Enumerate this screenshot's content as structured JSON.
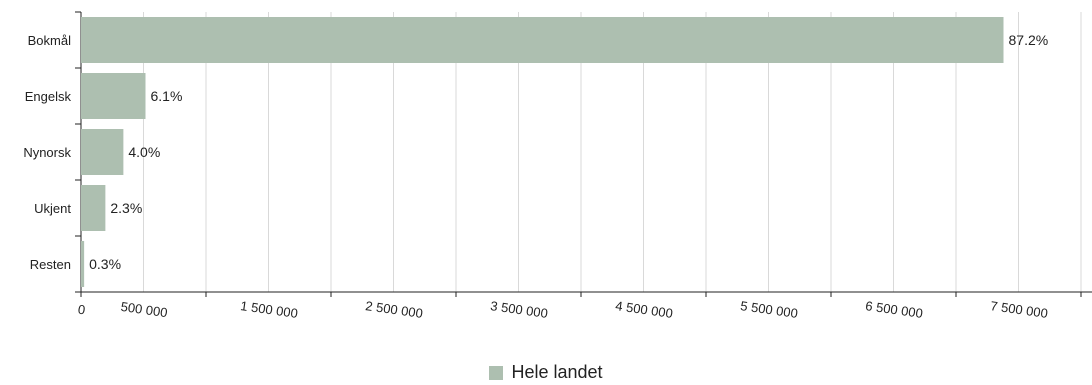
{
  "chart_data": {
    "type": "bar",
    "orientation": "horizontal",
    "categories": [
      "Bokmål",
      "Engelsk",
      "Nynorsk",
      "Ukjent",
      "Resten"
    ],
    "series": [
      {
        "name": "Hele landet",
        "values": [
          7380000,
          516000,
          339000,
          195000,
          25000
        ]
      }
    ],
    "data_labels": [
      "87.2%",
      "6.1%",
      "4.0%",
      "2.3%",
      "0.3%"
    ],
    "xlim": [
      0,
      8000000
    ],
    "x_tick_labels": [
      "0",
      "500 000",
      "1 500 000",
      "2 500 000",
      "3 500 000",
      "4 500 000",
      "5 500 000",
      "6 500 000",
      "7 500 000"
    ],
    "x_tick_values": [
      0,
      500000,
      1500000,
      2500000,
      3500000,
      4500000,
      5500000,
      6500000,
      7500000
    ],
    "grid": true,
    "legend_position": "bottom-center",
    "colors": {
      "bar": "#adbfb0",
      "grid": "#d9d9d9",
      "axis": "#222222"
    }
  }
}
